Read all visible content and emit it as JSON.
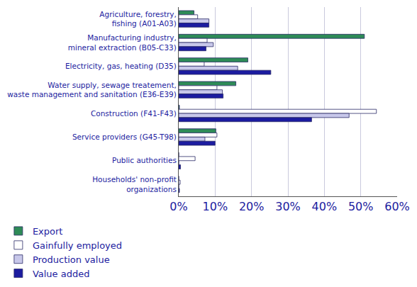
{
  "chart_data": {
    "type": "bar",
    "orientation": "horizontal",
    "categories": [
      "Agriculture, forestry,\nfishing (A01-A03)",
      "Manufacturing industry,\nmineral extraction (B05-C33)",
      "Electricity, gas, heating (D35)",
      "Water supply, sewage treatement,\nwaste management and sanitation (E36-E39)",
      "Construction (F41-F43)",
      "Service providers (G45-T98)",
      "Public authorities",
      "Households' non-profit\norganizations"
    ],
    "series": [
      {
        "name": "Export",
        "color": "#2e8b57",
        "values": [
          4.2,
          51,
          19,
          15.7,
          0.2,
          10.2,
          0,
          0
        ]
      },
      {
        "name": "Gainfully employed",
        "color": "#ffffff",
        "values": [
          5.2,
          7.8,
          7,
          10.5,
          54.3,
          10.5,
          4.5,
          0.4
        ]
      },
      {
        "name": "Production value",
        "color": "#c8c8ea",
        "values": [
          8.3,
          9.5,
          16.2,
          12,
          46.8,
          7.2,
          0,
          0
        ]
      },
      {
        "name": "Value added",
        "color": "#1c1ca0",
        "values": [
          8.3,
          7.5,
          25.3,
          12.2,
          36.5,
          10,
          0.5,
          0.2
        ]
      }
    ],
    "xlim": [
      0,
      60
    ],
    "xticks": [
      {
        "value": 0,
        "label": "0%"
      },
      {
        "value": 10,
        "label": "10%"
      },
      {
        "value": 20,
        "label": "20%"
      },
      {
        "value": 30,
        "label": "30%"
      },
      {
        "value": 40,
        "label": "40%"
      },
      {
        "value": 50,
        "label": "50%"
      },
      {
        "value": 60,
        "label": "60%"
      }
    ],
    "grid": true,
    "legend": "bottom"
  }
}
